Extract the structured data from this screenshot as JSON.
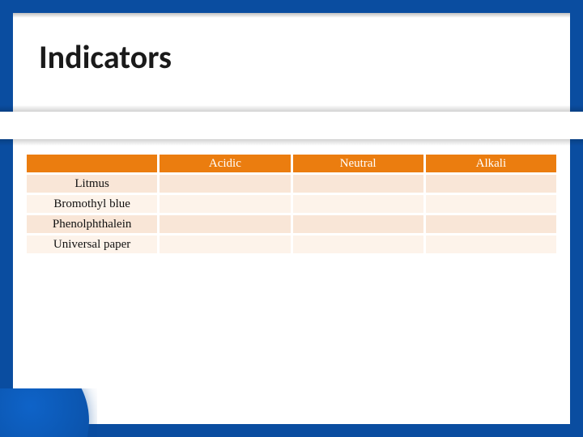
{
  "title": {
    "text": "Indicators",
    "fontsize": 40
  },
  "frame_color": "#0a4da0",
  "table": {
    "header_bg": "#eb7d0f",
    "header_fg": "#ffffff",
    "row_odd_bg": "#f9e6d7",
    "row_even_bg": "#fdf3ea",
    "cell_fontsize": 15,
    "columns": [
      "",
      "Acidic",
      "Neutral",
      "Alkali"
    ],
    "rows": [
      [
        "Litmus",
        "",
        "",
        ""
      ],
      [
        "Bromothyl blue",
        "",
        "",
        ""
      ],
      [
        "Phenolphthalein",
        "",
        "",
        ""
      ],
      [
        "Universal paper",
        "",
        "",
        ""
      ]
    ]
  }
}
